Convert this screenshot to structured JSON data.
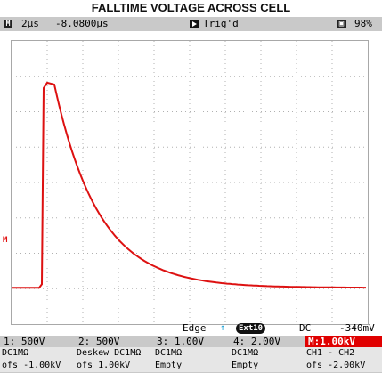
{
  "page": {
    "title": "FALLTIME VOLTAGE ACROSS CELL"
  },
  "header": {
    "mode_icon": "M",
    "timebase": "2µs",
    "position": "-8.0800µs",
    "trigger_status": "Trig'd",
    "battery_icon": "battery-icon",
    "battery_level": "98%"
  },
  "trigger": {
    "type": "Edge",
    "source": "Ext10",
    "coupling": "DC",
    "level": "-340mV"
  },
  "channels": [
    {
      "head": "1:  500V",
      "line1": "DC1MΩ",
      "line2": "ofs  -1.00kV"
    },
    {
      "head": "2:  500V",
      "line1": "Deskew DC1MΩ",
      "line2": "ofs   1.00kV"
    },
    {
      "head": "3: 1.00V",
      "line1": "DC1MΩ",
      "line2": "Empty"
    },
    {
      "head": "4: 2.00V",
      "line1": "DC1MΩ",
      "line2": "Empty"
    },
    {
      "head": "M:1.00kV",
      "line1": "CH1 - CH2",
      "line2": "ofs  -2.00kV"
    }
  ],
  "marker": "M",
  "waveform_color": "#dd1111",
  "waveform": {
    "baseline_level": 0.0,
    "step_time_div": 0.85,
    "peak_level": 1.0,
    "tau_div": 1.25
  }
}
